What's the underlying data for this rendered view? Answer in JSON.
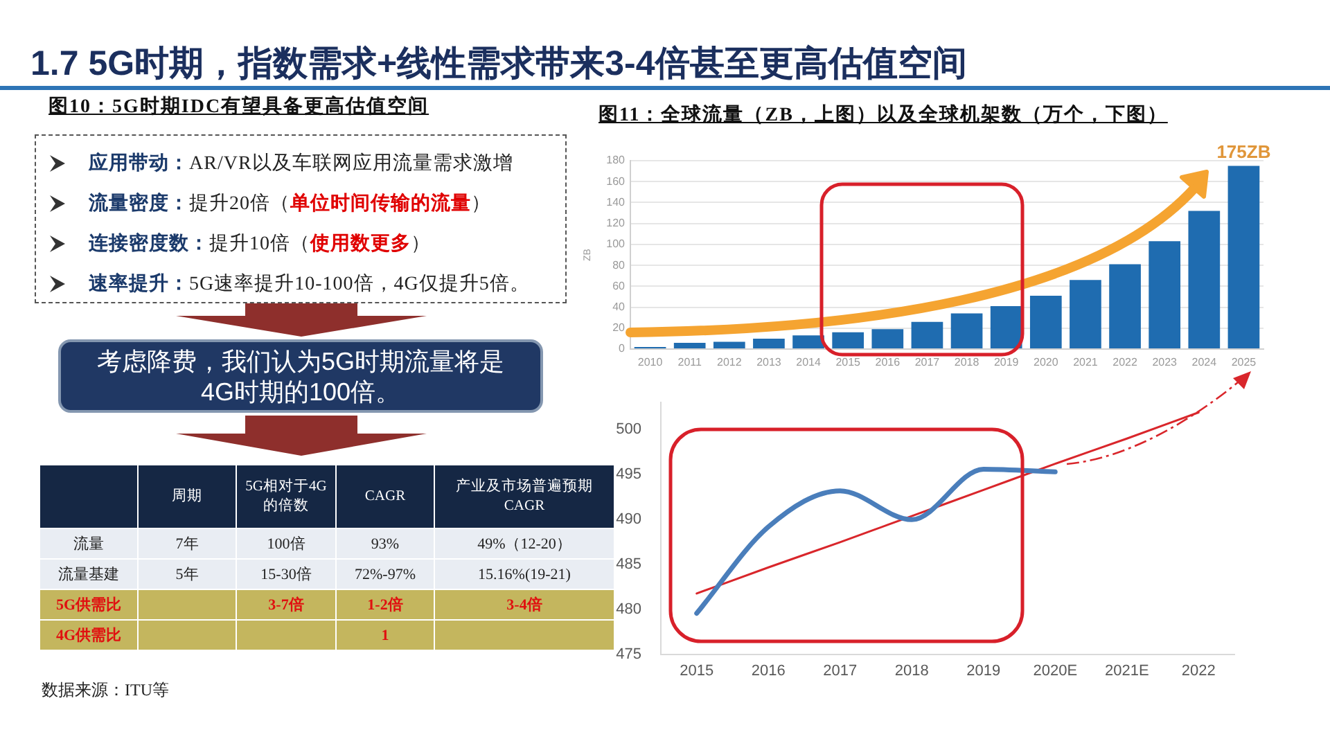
{
  "chart_data": [
    {
      "type": "other",
      "title": "1.7 5G时期，指数需求+线性需求带来3-4倍甚至更高估值空间",
      "subtitle": "图10：5G时期IDC有望具备更高估值空间",
      "annotations": [
        "应用带动：AR/VR以及车联网应用流量需求激增",
        "流量密度：提升20倍（单位时间传输的流量）",
        "连接密度数：提升10倍（使用数更多）",
        "速率提升：5G速率提升10-100倍，4G仅提升5倍。"
      ]
    },
    {
      "type": "other",
      "title": "考虑降费，我们认为5G时期流量将是4G时期的100倍。",
      "categories": [
        "周期",
        "5G相对于4G的倍数",
        "CAGR",
        "产业及市场普遍预期CAGR"
      ],
      "y_categories": [
        "流量",
        "流量基建",
        "5G供需比",
        "4G供需比"
      ],
      "cell_labels": [
        [
          "7年",
          "100倍",
          "93%",
          "49%（12-20）"
        ],
        [
          "5年",
          "15-30倍",
          "72%-97%",
          "15.16%(19-21)"
        ],
        [
          null,
          "3-7倍",
          "1-2倍",
          "3-4倍"
        ],
        [
          null,
          null,
          "1",
          null
        ]
      ],
      "annotations": [
        "数据来源：ITU等"
      ]
    },
    {
      "type": "bar",
      "title": "图11：全球流量（ZB，上图）以及全球机架数（万个，下图）",
      "ylabel": "ZB",
      "categories": [
        "2010",
        "2011",
        "2012",
        "2013",
        "2014",
        "2015",
        "2016",
        "2017",
        "2018",
        "2019",
        "2020",
        "2021",
        "2022",
        "2023",
        "2024",
        "2025"
      ],
      "values": [
        2,
        6,
        7,
        10,
        13,
        16,
        19,
        26,
        34,
        41,
        51,
        66,
        81,
        103,
        132,
        175
      ],
      "color": "#1f6cb0",
      "ylim": [
        0,
        180
      ],
      "yticks": [
        0,
        20,
        40,
        60,
        80,
        100,
        120,
        140,
        160,
        180
      ],
      "grid": "y",
      "annotations": [
        {
          "text": "175ZB",
          "x": "2025",
          "y": 175
        }
      ]
    },
    {
      "type": "line",
      "categories": [
        "2015",
        "2016",
        "2017",
        "2018",
        "2019",
        "2020E",
        "2021E",
        "2022"
      ],
      "series": [
        {
          "color": "#4a7ebb",
          "values": [
            479.6,
            489.2,
            493.2,
            490.0,
            495.6,
            495.3,
            null,
            null
          ]
        },
        {
          "color": "#d9262b",
          "values": [
            481.8,
            484.7,
            487.5,
            490.4,
            493.3,
            496.2,
            499.0,
            501.9
          ]
        }
      ],
      "ylim": [
        475,
        503
      ],
      "yticks": [
        475,
        480,
        485,
        490,
        495,
        500
      ],
      "grid": false,
      "marker": "none"
    }
  ]
}
